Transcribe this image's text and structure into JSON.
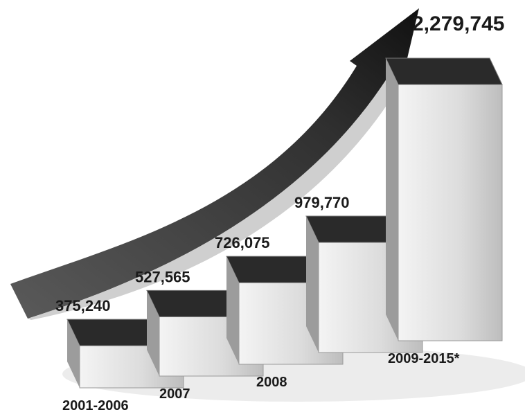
{
  "chart_data": {
    "type": "bar",
    "categories": [
      "2001-2006",
      "2007",
      "2008",
      null,
      "2009-2015*"
    ],
    "values": [
      375240,
      527565,
      726075,
      979770,
      2279745
    ],
    "value_labels": [
      "375,240",
      "527,565",
      "726,075",
      "979,770",
      "2,279,745"
    ],
    "color": "#d4d4d4"
  }
}
